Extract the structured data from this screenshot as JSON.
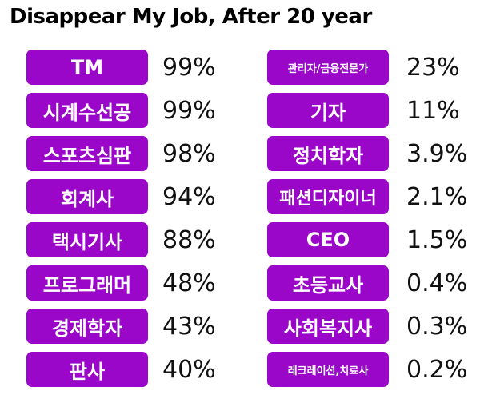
{
  "chart_data": {
    "type": "table",
    "title": "Disappear My Job, After 20 year",
    "left": [
      {
        "job": "TM",
        "percent": "99%",
        "value": 99
      },
      {
        "job": "시계수선공",
        "percent": "99%",
        "value": 99
      },
      {
        "job": "스포츠심판",
        "percent": "98%",
        "value": 98
      },
      {
        "job": "회계사",
        "percent": "94%",
        "value": 94
      },
      {
        "job": "택시기사",
        "percent": "88%",
        "value": 88
      },
      {
        "job": "프로그래머",
        "percent": "48%",
        "value": 48
      },
      {
        "job": "경제학자",
        "percent": "43%",
        "value": 43
      },
      {
        "job": "판사",
        "percent": "40%",
        "value": 40
      }
    ],
    "right": [
      {
        "job": "관리자/금융전문가",
        "percent": "23%",
        "value": 23
      },
      {
        "job": "기자",
        "percent": "11%",
        "value": 11
      },
      {
        "job": "정치학자",
        "percent": "3.9%",
        "value": 3.9
      },
      {
        "job": "패션디자이너",
        "percent": "2.1%",
        "value": 2.1
      },
      {
        "job": "CEO",
        "percent": "1.5%",
        "value": 1.5
      },
      {
        "job": "초등교사",
        "percent": "0.4%",
        "value": 0.4
      },
      {
        "job": "사회복지사",
        "percent": "0.3%",
        "value": 0.3
      },
      {
        "job": "레크레이션,치료사",
        "percent": "0.2%",
        "value": 0.2
      }
    ]
  },
  "colors": {
    "pill": "#9a07c9",
    "pill_text": "#ffffff",
    "percent_text": "#111111"
  }
}
